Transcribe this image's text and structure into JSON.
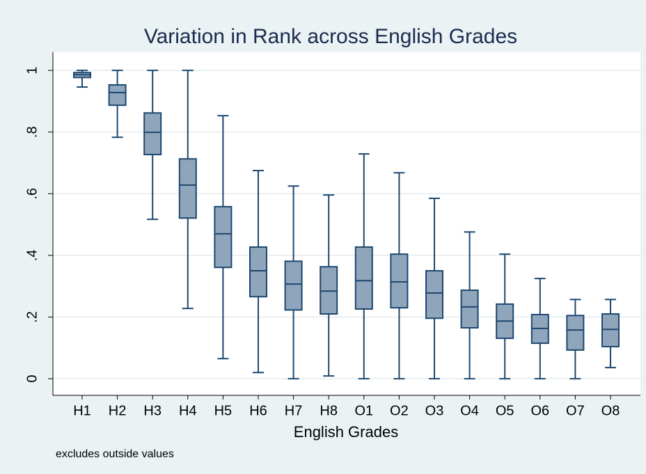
{
  "chart_data": {
    "type": "box",
    "title": "Variation in Rank across English Grades",
    "x_label": "English Grades",
    "note": "excludes outside values",
    "categories": [
      "H1",
      "H2",
      "H3",
      "H4",
      "H5",
      "H6",
      "H7",
      "H8",
      "O1",
      "O2",
      "O3",
      "O4",
      "O5",
      "O6",
      "O7",
      "O8"
    ],
    "boxes": [
      {
        "low": 0.946,
        "q1": 0.977,
        "median": 0.986,
        "q3": 0.993,
        "high": 1.0
      },
      {
        "low": 0.783,
        "q1": 0.887,
        "median": 0.928,
        "q3": 0.953,
        "high": 1.0
      },
      {
        "low": 0.517,
        "q1": 0.727,
        "median": 0.799,
        "q3": 0.862,
        "high": 1.0
      },
      {
        "low": 0.228,
        "q1": 0.521,
        "median": 0.628,
        "q3": 0.713,
        "high": 1.0
      },
      {
        "low": 0.065,
        "q1": 0.361,
        "median": 0.47,
        "q3": 0.558,
        "high": 0.853
      },
      {
        "low": 0.02,
        "q1": 0.266,
        "median": 0.35,
        "q3": 0.427,
        "high": 0.675
      },
      {
        "low": 0,
        "q1": 0.223,
        "median": 0.307,
        "q3": 0.381,
        "high": 0.625
      },
      {
        "low": 0.009,
        "q1": 0.21,
        "median": 0.284,
        "q3": 0.363,
        "high": 0.596
      },
      {
        "low": 0,
        "q1": 0.226,
        "median": 0.318,
        "q3": 0.427,
        "high": 0.729
      },
      {
        "low": 0,
        "q1": 0.23,
        "median": 0.314,
        "q3": 0.404,
        "high": 0.668
      },
      {
        "low": 0,
        "q1": 0.196,
        "median": 0.278,
        "q3": 0.35,
        "high": 0.585
      },
      {
        "low": 0,
        "q1": 0.165,
        "median": 0.233,
        "q3": 0.287,
        "high": 0.476
      },
      {
        "low": 0,
        "q1": 0.131,
        "median": 0.187,
        "q3": 0.242,
        "high": 0.404
      },
      {
        "low": 0,
        "q1": 0.115,
        "median": 0.163,
        "q3": 0.208,
        "high": 0.325
      },
      {
        "low": 0,
        "q1": 0.093,
        "median": 0.158,
        "q3": 0.205,
        "high": 0.257
      },
      {
        "low": 0.036,
        "q1": 0.104,
        "median": 0.16,
        "q3": 0.21,
        "high": 0.257
      }
    ],
    "color": "#8fa5bb",
    "edge_color": "#1d476f",
    "ylim": [
      -0.054,
      1.059
    ],
    "yticks": [
      0,
      {
        "value": 0.2,
        "label": ".2"
      },
      {
        "value": 0.4,
        "label": ".4"
      },
      {
        "value": 0.6,
        "label": ".6"
      },
      {
        "value": 0.8,
        "label": ".8"
      },
      1
    ],
    "grid": true
  }
}
